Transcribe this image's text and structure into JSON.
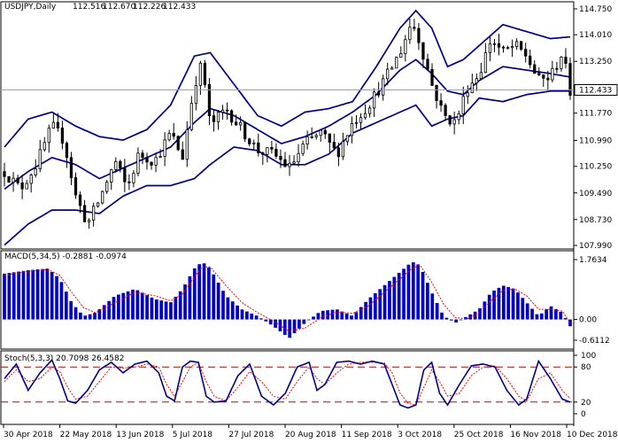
{
  "chart_data": [
    {
      "type": "candlestick",
      "panel": "price",
      "header": {
        "symbol": "USDJPY,Daily",
        "ohlc": [
          "112.516",
          "112.670",
          "112.226",
          "112.433"
        ]
      },
      "ylim": [
        107.99,
        114.75
      ],
      "yticks": [
        "114.750",
        "114.010",
        "113.250",
        "112.433",
        "111.770",
        "110.990",
        "110.250",
        "109.490",
        "108.730",
        "107.990"
      ],
      "ytick_values": [
        114.75,
        114.01,
        113.25,
        112.433,
        111.77,
        110.99,
        110.25,
        109.49,
        108.73,
        107.99
      ],
      "last_price": "112.433",
      "last_price_value": 112.433,
      "candle_count": 128,
      "candle_colors": {
        "up": "#ffffff",
        "down": "#000000",
        "wick": "#000000"
      },
      "bands_color": "#00008b",
      "price_path": [
        [
          0,
          110.1
        ],
        [
          4,
          109.6
        ],
        [
          8,
          110.3
        ],
        [
          12,
          111.4
        ],
        [
          15,
          111.0
        ],
        [
          18,
          109.4
        ],
        [
          21,
          108.6
        ],
        [
          24,
          109.3
        ],
        [
          28,
          110.4
        ],
        [
          31,
          109.6
        ],
        [
          34,
          110.6
        ],
        [
          38,
          110.4
        ],
        [
          42,
          111.2
        ],
        [
          45,
          110.5
        ],
        [
          48,
          112.6
        ],
        [
          50,
          113.2
        ],
        [
          52,
          111.4
        ],
        [
          56,
          111.9
        ],
        [
          60,
          111.3
        ],
        [
          64,
          110.7
        ],
        [
          68,
          110.6
        ],
        [
          72,
          110.2
        ],
        [
          76,
          110.9
        ],
        [
          80,
          111.2
        ],
        [
          84,
          110.6
        ],
        [
          88,
          111.5
        ],
        [
          92,
          112.0
        ],
        [
          96,
          112.7
        ],
        [
          100,
          113.5
        ],
        [
          103,
          114.4
        ],
        [
          105,
          113.8
        ],
        [
          108,
          112.6
        ],
        [
          111,
          111.7
        ],
        [
          114,
          111.5
        ],
        [
          117,
          112.5
        ],
        [
          120,
          112.9
        ],
        [
          123,
          113.9
        ],
        [
          126,
          113.5
        ],
        [
          129,
          113.7
        ],
        [
          132,
          113.4
        ],
        [
          135,
          112.7
        ],
        [
          138,
          112.8
        ],
        [
          141,
          113.5
        ],
        [
          143,
          112.4
        ]
      ],
      "bands_upper": [
        [
          0,
          110.8
        ],
        [
          6,
          111.6
        ],
        [
          12,
          111.8
        ],
        [
          18,
          111.4
        ],
        [
          24,
          111.1
        ],
        [
          30,
          111.0
        ],
        [
          36,
          111.3
        ],
        [
          42,
          112.0
        ],
        [
          48,
          113.4
        ],
        [
          52,
          113.5
        ],
        [
          58,
          112.6
        ],
        [
          64,
          111.7
        ],
        [
          70,
          111.4
        ],
        [
          76,
          111.8
        ],
        [
          82,
          111.9
        ],
        [
          88,
          112.1
        ],
        [
          94,
          113.1
        ],
        [
          100,
          114.2
        ],
        [
          104,
          114.7
        ],
        [
          108,
          114.2
        ],
        [
          112,
          113.1
        ],
        [
          116,
          113.3
        ],
        [
          120,
          113.7
        ],
        [
          126,
          114.3
        ],
        [
          132,
          114.1
        ],
        [
          138,
          113.9
        ],
        [
          143,
          113.95
        ]
      ],
      "bands_middle": [
        [
          0,
          109.6
        ],
        [
          6,
          110.1
        ],
        [
          12,
          110.5
        ],
        [
          18,
          110.3
        ],
        [
          24,
          109.9
        ],
        [
          30,
          110.2
        ],
        [
          36,
          110.5
        ],
        [
          42,
          110.8
        ],
        [
          48,
          111.5
        ],
        [
          52,
          111.9
        ],
        [
          58,
          111.7
        ],
        [
          64,
          111.3
        ],
        [
          70,
          110.9
        ],
        [
          76,
          111.1
        ],
        [
          82,
          111.4
        ],
        [
          88,
          111.8
        ],
        [
          94,
          112.3
        ],
        [
          100,
          113.0
        ],
        [
          104,
          113.3
        ],
        [
          108,
          112.9
        ],
        [
          112,
          112.4
        ],
        [
          116,
          112.3
        ],
        [
          120,
          112.7
        ],
        [
          126,
          113.1
        ],
        [
          132,
          113.0
        ],
        [
          138,
          112.9
        ],
        [
          143,
          112.8
        ]
      ],
      "bands_lower": [
        [
          0,
          108.0
        ],
        [
          6,
          108.6
        ],
        [
          12,
          109.0
        ],
        [
          18,
          109.0
        ],
        [
          24,
          108.9
        ],
        [
          30,
          109.4
        ],
        [
          36,
          109.7
        ],
        [
          42,
          109.7
        ],
        [
          48,
          109.9
        ],
        [
          52,
          110.3
        ],
        [
          58,
          110.8
        ],
        [
          64,
          110.7
        ],
        [
          70,
          110.3
        ],
        [
          76,
          110.3
        ],
        [
          82,
          110.6
        ],
        [
          88,
          111.2
        ],
        [
          94,
          111.5
        ],
        [
          100,
          111.8
        ],
        [
          104,
          112.0
        ],
        [
          108,
          111.4
        ],
        [
          112,
          111.6
        ],
        [
          116,
          111.7
        ],
        [
          120,
          112.2
        ],
        [
          126,
          112.1
        ],
        [
          132,
          112.3
        ],
        [
          138,
          112.4
        ],
        [
          143,
          112.4
        ]
      ]
    },
    {
      "type": "bar",
      "panel": "macd",
      "label": "MACD(5,34,5) -0.2881 -0.0974",
      "ylim": [
        -0.6112,
        1.7634
      ],
      "yticks": [
        "1.7634",
        "0.00",
        "-0.6112"
      ],
      "ytick_values": [
        1.7634,
        0.0,
        -0.6112
      ],
      "bar_color": "#0000cd",
      "signal_color": "#ff0000",
      "histogram_path": [
        [
          0,
          1.35
        ],
        [
          6,
          1.45
        ],
        [
          11,
          1.5
        ],
        [
          14,
          1.2
        ],
        [
          17,
          0.5
        ],
        [
          20,
          0.1
        ],
        [
          23,
          0.2
        ],
        [
          28,
          0.7
        ],
        [
          33,
          0.9
        ],
        [
          38,
          0.6
        ],
        [
          42,
          0.5
        ],
        [
          45,
          0.9
        ],
        [
          48,
          1.5
        ],
        [
          50,
          1.7
        ],
        [
          52,
          1.5
        ],
        [
          56,
          0.7
        ],
        [
          60,
          0.3
        ],
        [
          64,
          0.1
        ],
        [
          68,
          -0.2
        ],
        [
          72,
          -0.55
        ],
        [
          76,
          -0.1
        ],
        [
          80,
          0.25
        ],
        [
          84,
          0.3
        ],
        [
          88,
          0.1
        ],
        [
          92,
          0.6
        ],
        [
          96,
          1.0
        ],
        [
          100,
          1.4
        ],
        [
          103,
          1.7
        ],
        [
          105,
          1.6
        ],
        [
          108,
          0.8
        ],
        [
          111,
          0.1
        ],
        [
          114,
          -0.1
        ],
        [
          117,
          0.1
        ],
        [
          120,
          0.3
        ],
        [
          123,
          0.8
        ],
        [
          126,
          1.0
        ],
        [
          129,
          0.9
        ],
        [
          132,
          0.5
        ],
        [
          135,
          0.1
        ],
        [
          138,
          0.4
        ],
        [
          141,
          0.2
        ],
        [
          143,
          -0.2
        ]
      ],
      "signal_path": [
        [
          0,
          1.3
        ],
        [
          6,
          1.42
        ],
        [
          11,
          1.47
        ],
        [
          14,
          1.3
        ],
        [
          17,
          0.8
        ],
        [
          20,
          0.35
        ],
        [
          23,
          0.2
        ],
        [
          28,
          0.5
        ],
        [
          33,
          0.8
        ],
        [
          38,
          0.7
        ],
        [
          42,
          0.55
        ],
        [
          45,
          0.75
        ],
        [
          48,
          1.25
        ],
        [
          50,
          1.55
        ],
        [
          52,
          1.55
        ],
        [
          56,
          1.0
        ],
        [
          60,
          0.5
        ],
        [
          64,
          0.2
        ],
        [
          68,
          -0.05
        ],
        [
          72,
          -0.35
        ],
        [
          76,
          -0.25
        ],
        [
          80,
          0.05
        ],
        [
          84,
          0.22
        ],
        [
          88,
          0.18
        ],
        [
          92,
          0.4
        ],
        [
          96,
          0.8
        ],
        [
          100,
          1.2
        ],
        [
          103,
          1.5
        ],
        [
          105,
          1.6
        ],
        [
          108,
          1.1
        ],
        [
          111,
          0.45
        ],
        [
          114,
          0.05
        ],
        [
          117,
          0.02
        ],
        [
          120,
          0.2
        ],
        [
          123,
          0.55
        ],
        [
          126,
          0.85
        ],
        [
          129,
          0.9
        ],
        [
          132,
          0.7
        ],
        [
          135,
          0.3
        ],
        [
          138,
          0.3
        ],
        [
          141,
          0.25
        ],
        [
          143,
          -0.1
        ]
      ]
    },
    {
      "type": "line",
      "panel": "stochastic",
      "label": "Stoch(5,3,3) 20.7098 26.4582",
      "ylim": [
        0,
        100
      ],
      "yticks": [
        "100",
        "80",
        "20",
        "0"
      ],
      "ytick_values": [
        100,
        80,
        20,
        0
      ],
      "levels": [
        20,
        80
      ],
      "level_color": "#cc0000",
      "main_color": "#00008b",
      "signal_color": "#ff0000",
      "k_path": [
        [
          0,
          60
        ],
        [
          3,
          85
        ],
        [
          6,
          40
        ],
        [
          9,
          70
        ],
        [
          12,
          92
        ],
        [
          14,
          60
        ],
        [
          16,
          22
        ],
        [
          18,
          18
        ],
        [
          21,
          40
        ],
        [
          24,
          75
        ],
        [
          27,
          88
        ],
        [
          30,
          70
        ],
        [
          33,
          85
        ],
        [
          36,
          90
        ],
        [
          39,
          70
        ],
        [
          41,
          30
        ],
        [
          43,
          22
        ],
        [
          45,
          80
        ],
        [
          47,
          90
        ],
        [
          49,
          88
        ],
        [
          51,
          30
        ],
        [
          53,
          20
        ],
        [
          56,
          22
        ],
        [
          59,
          65
        ],
        [
          62,
          85
        ],
        [
          65,
          30
        ],
        [
          68,
          15
        ],
        [
          71,
          35
        ],
        [
          74,
          80
        ],
        [
          77,
          88
        ],
        [
          79,
          40
        ],
        [
          81,
          50
        ],
        [
          84,
          88
        ],
        [
          87,
          90
        ],
        [
          90,
          85
        ],
        [
          93,
          90
        ],
        [
          96,
          85
        ],
        [
          98,
          50
        ],
        [
          100,
          15
        ],
        [
          102,
          10
        ],
        [
          104,
          15
        ],
        [
          106,
          75
        ],
        [
          108,
          88
        ],
        [
          110,
          35
        ],
        [
          112,
          15
        ],
        [
          115,
          50
        ],
        [
          118,
          82
        ],
        [
          121,
          85
        ],
        [
          124,
          80
        ],
        [
          127,
          40
        ],
        [
          130,
          15
        ],
        [
          132,
          25
        ],
        [
          135,
          90
        ],
        [
          138,
          60
        ],
        [
          141,
          25
        ],
        [
          143,
          20
        ]
      ],
      "d_path": [
        [
          0,
          55
        ],
        [
          3,
          75
        ],
        [
          6,
          55
        ],
        [
          9,
          60
        ],
        [
          12,
          80
        ],
        [
          14,
          72
        ],
        [
          16,
          45
        ],
        [
          18,
          25
        ],
        [
          21,
          30
        ],
        [
          24,
          55
        ],
        [
          27,
          80
        ],
        [
          30,
          78
        ],
        [
          33,
          80
        ],
        [
          36,
          85
        ],
        [
          39,
          80
        ],
        [
          41,
          50
        ],
        [
          43,
          30
        ],
        [
          45,
          55
        ],
        [
          47,
          80
        ],
        [
          49,
          88
        ],
        [
          51,
          55
        ],
        [
          53,
          30
        ],
        [
          56,
          22
        ],
        [
          59,
          45
        ],
        [
          62,
          72
        ],
        [
          65,
          55
        ],
        [
          68,
          30
        ],
        [
          71,
          25
        ],
        [
          74,
          55
        ],
        [
          77,
          80
        ],
        [
          79,
          60
        ],
        [
          81,
          50
        ],
        [
          84,
          70
        ],
        [
          87,
          85
        ],
        [
          90,
          88
        ],
        [
          93,
          88
        ],
        [
          96,
          87
        ],
        [
          98,
          70
        ],
        [
          100,
          35
        ],
        [
          102,
          18
        ],
        [
          104,
          15
        ],
        [
          106,
          45
        ],
        [
          108,
          75
        ],
        [
          110,
          55
        ],
        [
          112,
          30
        ],
        [
          115,
          35
        ],
        [
          118,
          65
        ],
        [
          121,
          80
        ],
        [
          124,
          82
        ],
        [
          127,
          60
        ],
        [
          130,
          30
        ],
        [
          132,
          22
        ],
        [
          135,
          60
        ],
        [
          138,
          70
        ],
        [
          141,
          40
        ],
        [
          143,
          26
        ]
      ]
    },
    {
      "type": "axis",
      "panel": "time",
      "xlabels": [
        "30 Apr 2018",
        "22 May 2018",
        "13 Jun 2018",
        "5 Jul 2018",
        "27 Jul 2018",
        "20 Aug 2018",
        "11 Sep 2018",
        "3 Oct 2018",
        "25 Oct 2018",
        "16 Nov 2018",
        "10 Dec 2018"
      ]
    }
  ]
}
